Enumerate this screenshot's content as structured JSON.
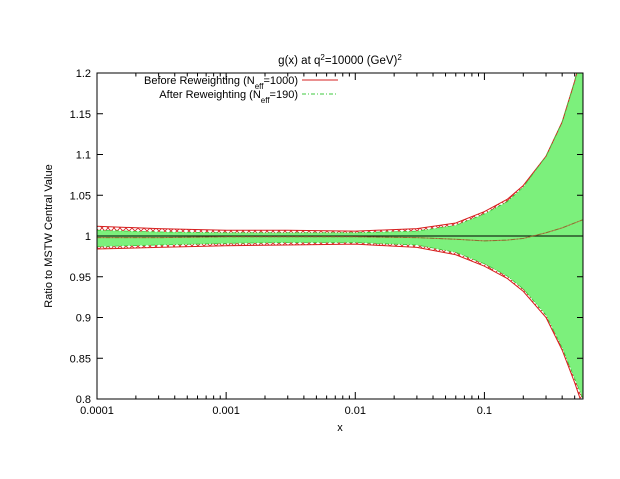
{
  "chart_data": {
    "type": "area",
    "title": {
      "prefix": "g(x) at q",
      "sup1": "2",
      "middle": "=10000 (GeV)",
      "sup2": "2"
    },
    "xlabel": "x",
    "ylabel": "Ratio to MSTW Central Value",
    "xscale": "log",
    "xlim": [
      0.0001,
      0.58
    ],
    "ylim": [
      0.8,
      1.2
    ],
    "xticks": [
      {
        "value": 0.0001,
        "label": "0.0001"
      },
      {
        "value": 0.001,
        "label": "0.001"
      },
      {
        "value": 0.01,
        "label": "0.01"
      },
      {
        "value": 0.1,
        "label": "0.1"
      }
    ],
    "yticks": [
      {
        "value": 0.8,
        "label": "0.8"
      },
      {
        "value": 0.85,
        "label": "0.85"
      },
      {
        "value": 0.9,
        "label": "0.9"
      },
      {
        "value": 0.95,
        "label": "0.95"
      },
      {
        "value": 1.0,
        "label": "1"
      },
      {
        "value": 1.05,
        "label": "1.05"
      },
      {
        "value": 1.1,
        "label": "1.1"
      },
      {
        "value": 1.15,
        "label": "1.15"
      },
      {
        "value": 1.2,
        "label": "1.2"
      }
    ],
    "legend": {
      "position": "top-left",
      "entries": [
        {
          "text": "Before Reweighting (N",
          "sub": "eff",
          "tail": "=1000)",
          "color": "#d62020",
          "style": "hatched-band"
        },
        {
          "text": "After Reweighting (N",
          "sub": "eff",
          "tail": "=190)",
          "color": "#7cf07c",
          "style": "filled-band"
        }
      ]
    },
    "series": [
      {
        "name": "Before Reweighting (Neff=1000)",
        "kind": "band",
        "color": "#d62020",
        "x": [
          0.0001,
          0.0003,
          0.001,
          0.003,
          0.01,
          0.03,
          0.06,
          0.1,
          0.15,
          0.2,
          0.3,
          0.4,
          0.5,
          0.58
        ],
        "upper": [
          1.012,
          1.009,
          1.007,
          1.007,
          1.006,
          1.009,
          1.016,
          1.03,
          1.045,
          1.062,
          1.098,
          1.14,
          1.19,
          1.23
        ],
        "lower": [
          0.984,
          0.986,
          0.988,
          0.989,
          0.99,
          0.986,
          0.977,
          0.963,
          0.948,
          0.932,
          0.9,
          0.86,
          0.82,
          0.79
        ],
        "central": [
          1.0,
          1.0,
          1.0,
          1.0,
          1.0,
          1.0,
          1.0,
          1.0,
          1.0,
          1.0,
          1.0,
          1.0,
          1.0,
          1.0
        ]
      },
      {
        "name": "After Reweighting (Neff=190)",
        "kind": "band",
        "color": "#7cf07c",
        "x": [
          0.0001,
          0.0003,
          0.001,
          0.003,
          0.01,
          0.03,
          0.06,
          0.1,
          0.15,
          0.2,
          0.3,
          0.4,
          0.5,
          0.58
        ],
        "upper": [
          1.007,
          1.005,
          1.004,
          1.004,
          1.004,
          1.006,
          1.013,
          1.027,
          1.042,
          1.06,
          1.098,
          1.14,
          1.19,
          1.23
        ],
        "lower": [
          0.987,
          0.989,
          0.991,
          0.992,
          0.992,
          0.989,
          0.98,
          0.966,
          0.951,
          0.935,
          0.903,
          0.863,
          0.825,
          0.8
        ],
        "central": [
          0.998,
          0.998,
          0.999,
          0.999,
          0.999,
          0.998,
          0.996,
          0.994,
          0.995,
          0.997,
          1.004,
          1.01,
          1.016,
          1.02
        ]
      }
    ]
  }
}
